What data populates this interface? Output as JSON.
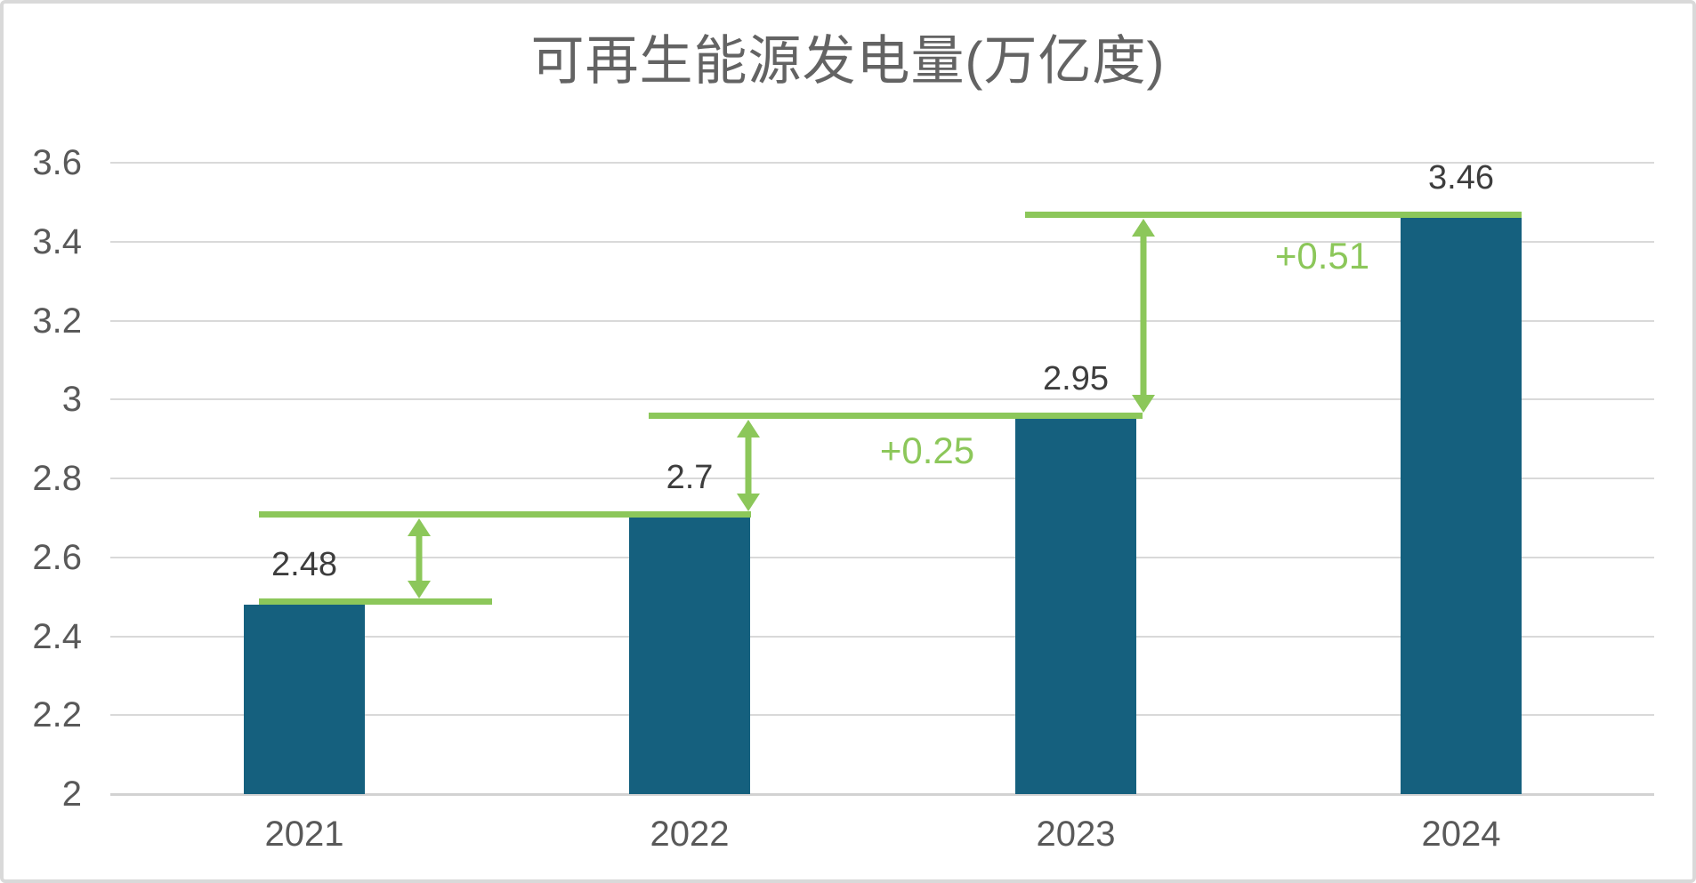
{
  "chart_data": {
    "type": "bar",
    "title": "可再生能源发电量(万亿度)",
    "categories": [
      "2021",
      "2022",
      "2023",
      "2024"
    ],
    "values": [
      2.48,
      2.7,
      2.95,
      3.46
    ],
    "bar_labels": [
      "2.48",
      "2.7",
      "2.95",
      "3.46"
    ],
    "ylim": [
      2,
      3.6
    ],
    "y_tick_labels": [
      "2",
      "2.2",
      "2.4",
      "2.6",
      "2.8",
      "3",
      "3.2",
      "3.4",
      "3.6"
    ],
    "grid": true,
    "legend": false,
    "annotations": [
      {
        "from": "2021",
        "to": "2022",
        "label": ""
      },
      {
        "from": "2022",
        "to": "2023",
        "label": "+0.25"
      },
      {
        "from": "2023",
        "to": "2024",
        "label": "+0.51"
      }
    ],
    "colors": {
      "bar": "#15607e",
      "increase": "#8cc75a",
      "grid": "#d9d9d9",
      "title_text": "#636363",
      "axis_text": "#595959",
      "bar_label_text": "#3d3d3d",
      "background": "#ffffff"
    }
  }
}
